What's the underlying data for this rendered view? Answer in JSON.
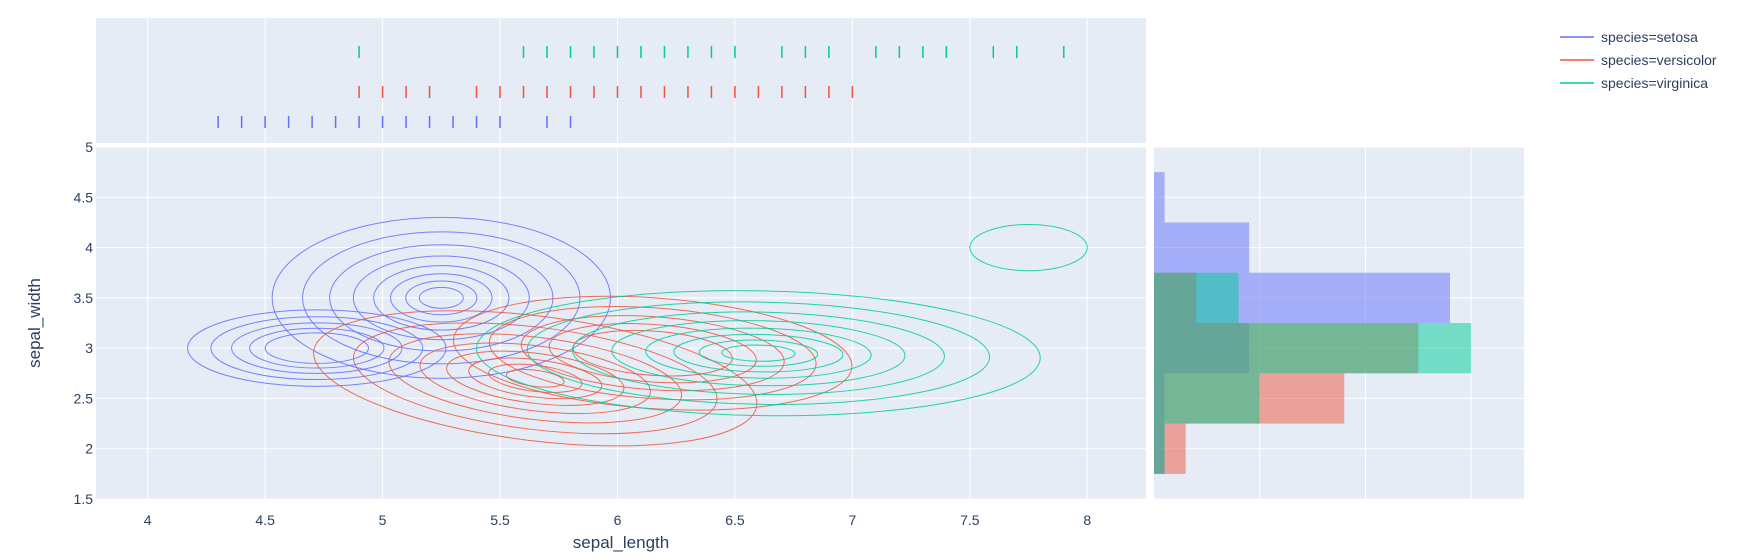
{
  "chart_data": {
    "type": "scatter",
    "subtype": "density-contour with marginal rug and histogram",
    "xlabel": "sepal_length",
    "ylabel": "sepal_width",
    "xlim": [
      3.78,
      8.25
    ],
    "ylim": [
      1.5,
      5.0
    ],
    "xticks": [
      "4",
      "4.5",
      "5",
      "5.5",
      "6",
      "6.5",
      "7",
      "7.5",
      "8"
    ],
    "yticks": [
      "1.5",
      "2",
      "2.5",
      "3",
      "3.5",
      "4",
      "4.5",
      "5"
    ],
    "grid": true,
    "legend_position": "top-right",
    "hist_bin_edges": [
      1.75,
      2.25,
      2.75,
      3.25,
      3.75,
      4.25,
      4.75
    ],
    "series": [
      {
        "name": "species=setosa",
        "color": "#636efa",
        "rug_x": [
          4.3,
          4.4,
          4.5,
          4.6,
          4.7,
          4.8,
          4.9,
          5.0,
          5.1,
          5.2,
          5.3,
          5.4,
          5.5,
          5.7,
          5.8
        ],
        "hist_counts": [
          1,
          1,
          9,
          28,
          9,
          1
        ],
        "contour_peaks": [
          {
            "x": 5.25,
            "y": 3.5,
            "rx": 0.72,
            "ry": 0.8,
            "tilt": 0
          },
          {
            "x": 4.72,
            "y": 3.0,
            "rx": 0.55,
            "ry": 0.38,
            "tilt": 0
          }
        ]
      },
      {
        "name": "species=versicolor",
        "color": "#ef553b",
        "rug_x": [
          4.9,
          5.0,
          5.1,
          5.2,
          5.4,
          5.5,
          5.6,
          5.7,
          5.8,
          5.9,
          6.0,
          6.1,
          6.2,
          6.3,
          6.4,
          6.5,
          6.6,
          6.7,
          6.8,
          6.9,
          7.0
        ],
        "hist_counts": [
          3,
          18,
          25,
          4,
          0,
          0
        ],
        "contour_peaks": [
          {
            "x": 5.65,
            "y": 2.7,
            "rx": 0.95,
            "ry": 0.62,
            "tilt": -0.35
          },
          {
            "x": 6.15,
            "y": 2.95,
            "rx": 0.85,
            "ry": 0.55,
            "tilt": -0.2
          }
        ]
      },
      {
        "name": "species=virginica",
        "color": "#00cc96",
        "rug_x": [
          4.9,
          5.6,
          5.7,
          5.8,
          5.9,
          6.0,
          6.1,
          6.2,
          6.3,
          6.4,
          6.5,
          6.7,
          6.8,
          6.9,
          7.1,
          7.2,
          7.3,
          7.4,
          7.6,
          7.7,
          7.9
        ],
        "hist_counts": [
          1,
          10,
          30,
          8,
          0,
          0
        ],
        "contour_peaks": [
          {
            "x": 6.6,
            "y": 2.95,
            "rx": 1.2,
            "ry": 0.62,
            "tilt": -0.05
          },
          {
            "x": 7.75,
            "y": 4.0,
            "rx": 0.25,
            "ry": 0.23,
            "tilt": 0
          }
        ]
      }
    ]
  }
}
